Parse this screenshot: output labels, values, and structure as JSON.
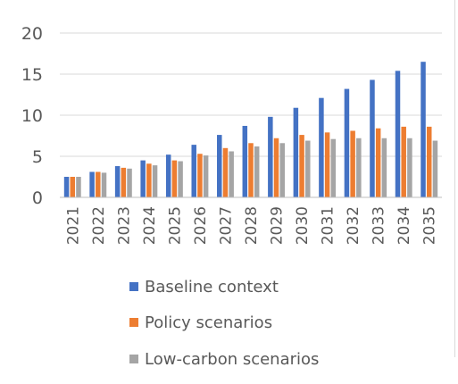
{
  "chart_data": {
    "type": "bar",
    "title": "",
    "xlabel": "",
    "ylabel": "",
    "categories": [
      "2021",
      "2022",
      "2023",
      "2024",
      "2025",
      "2026",
      "2027",
      "2028",
      "2029",
      "2030",
      "2031",
      "2032",
      "2033",
      "2034",
      "2035"
    ],
    "ylim": [
      0,
      20
    ],
    "yticks": [
      0,
      5,
      10,
      15,
      20
    ],
    "grid": "horizontal",
    "legend_position": "bottom",
    "series": [
      {
        "name": "Baseline context",
        "color": "#4472C4",
        "values": [
          2.5,
          3.1,
          3.8,
          4.5,
          5.2,
          6.4,
          7.6,
          8.7,
          9.8,
          10.9,
          12.1,
          13.2,
          14.3,
          15.4,
          16.5
        ]
      },
      {
        "name": "Policy scenarios",
        "color": "#ED7D31",
        "values": [
          2.5,
          3.1,
          3.6,
          4.1,
          4.5,
          5.3,
          6.0,
          6.6,
          7.2,
          7.6,
          7.9,
          8.1,
          8.4,
          8.6,
          8.6
        ]
      },
      {
        "name": "Low-carbon scenarios",
        "color": "#A5A5A5",
        "values": [
          2.5,
          3.0,
          3.5,
          3.9,
          4.4,
          5.1,
          5.6,
          6.2,
          6.6,
          6.9,
          7.1,
          7.2,
          7.2,
          7.2,
          6.9
        ]
      }
    ]
  }
}
